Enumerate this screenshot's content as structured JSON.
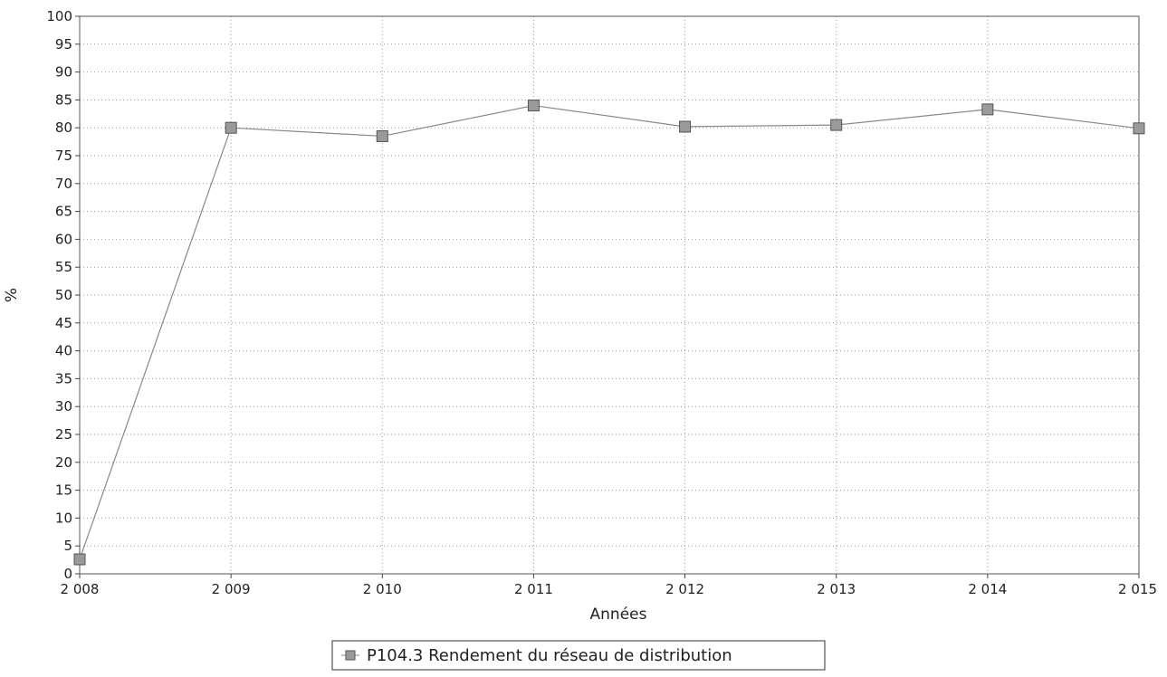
{
  "chart_data": {
    "type": "line",
    "x": [
      "2 008",
      "2 009",
      "2 010",
      "2 011",
      "2 012",
      "2 013",
      "2 014",
      "2 015"
    ],
    "series": [
      {
        "name": "P104.3 Rendement du réseau de distribution",
        "values": [
          2.6,
          80,
          78.5,
          84,
          80.2,
          80.5,
          83.3,
          79.9
        ],
        "color": "#888888"
      }
    ],
    "xlabel": "Années",
    "ylabel": "%",
    "ylim": [
      0,
      100
    ],
    "yticks": [
      0,
      5,
      10,
      15,
      20,
      25,
      30,
      35,
      40,
      45,
      50,
      55,
      60,
      65,
      70,
      75,
      80,
      85,
      90,
      95,
      100
    ],
    "grid": true,
    "legend": "bottom-center"
  }
}
